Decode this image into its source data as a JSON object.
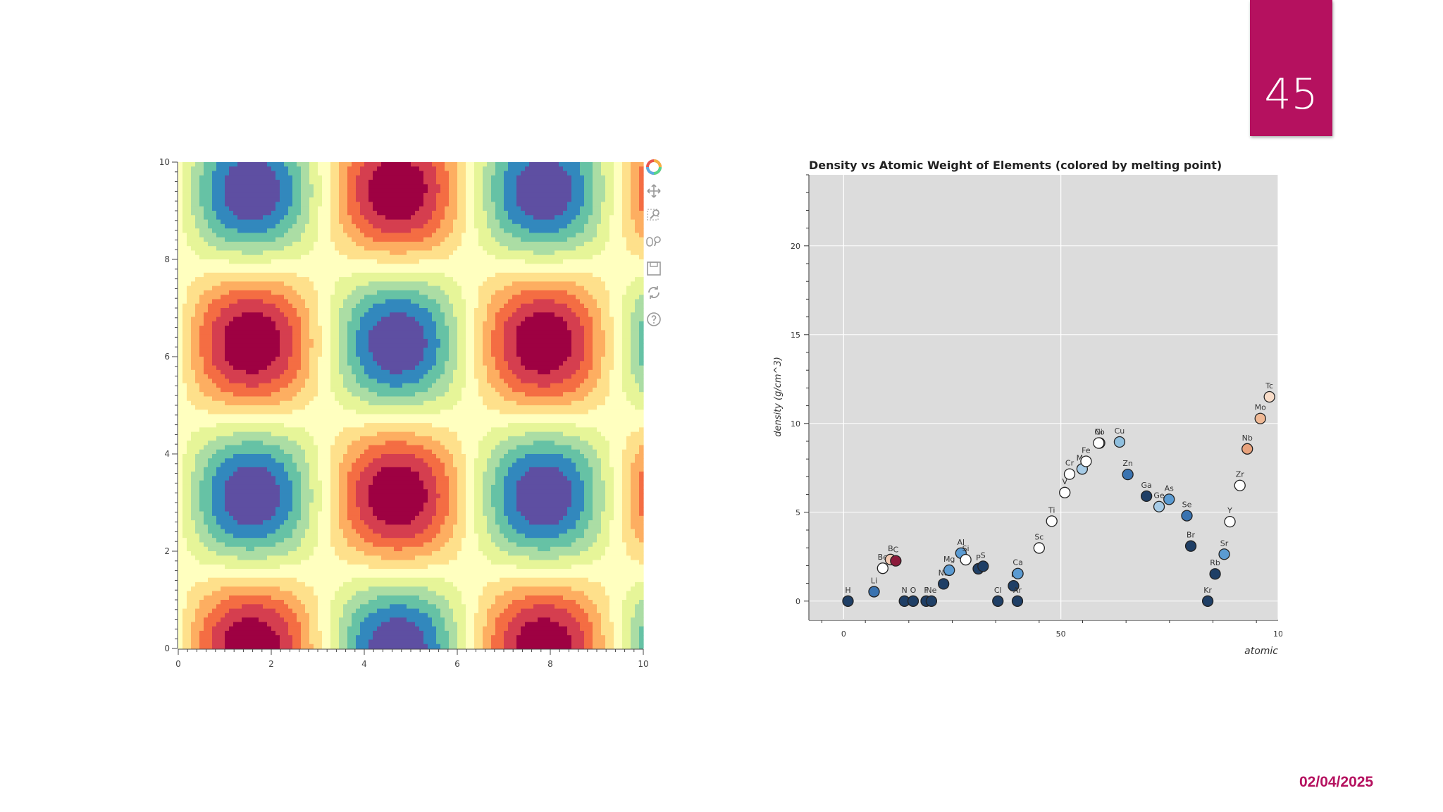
{
  "slide": {
    "number": "45",
    "date": "02/04/2025"
  },
  "toolbar": {
    "icons": [
      "bokeh-logo-icon",
      "pan-icon",
      "box-zoom-icon",
      "wheel-zoom-icon",
      "save-icon",
      "reset-icon",
      "help-icon"
    ]
  },
  "chart_data": [
    {
      "type": "heatmap",
      "function": "sin(x)*cos(y)",
      "x_range": [
        0,
        10
      ],
      "y_range": [
        0,
        10
      ],
      "x_ticks": [
        "0",
        "2",
        "4",
        "6",
        "8",
        "10"
      ],
      "y_ticks": [
        "0",
        "2",
        "4",
        "6",
        "8",
        "10"
      ],
      "levels": 11,
      "palette": [
        "#5e4fa2",
        "#3288bd",
        "#66c2a5",
        "#abdda4",
        "#e6f598",
        "#ffffbf",
        "#fee08b",
        "#fdae61",
        "#f46d43",
        "#d53e4f",
        "#9e0142"
      ],
      "grid": false,
      "legend": "none"
    },
    {
      "type": "scatter",
      "title": "Density vs Atomic Weight of Elements (colored by melting point)",
      "ylabel": "density (g/cm^3)",
      "xlabel": "atomic",
      "x_range": [
        -8,
        100
      ],
      "y_range": [
        -1,
        24
      ],
      "x_ticks": [
        "0",
        "50",
        "10"
      ],
      "y_ticks": [
        "0",
        "5",
        "10",
        "15",
        "20"
      ],
      "grid": true,
      "points": [
        {
          "label": "H",
          "x": 1,
          "y": 0,
          "color": "#1f3f66"
        },
        {
          "label": "Li",
          "x": 7,
          "y": 0.53,
          "color": "#3a73b0"
        },
        {
          "label": "Be",
          "x": 9,
          "y": 1.85,
          "color": "#ffffff"
        },
        {
          "label": "B",
          "x": 10.8,
          "y": 2.34,
          "color": "#f4cbb4"
        },
        {
          "label": "C",
          "x": 12,
          "y": 2.27,
          "color": "#8b1a3a"
        },
        {
          "label": "N",
          "x": 14,
          "y": 0,
          "color": "#1f3f66"
        },
        {
          "label": "O",
          "x": 16,
          "y": 0,
          "color": "#1f3f66"
        },
        {
          "label": "F",
          "x": 19,
          "y": 0,
          "color": "#1f3f66"
        },
        {
          "label": "Ne",
          "x": 20.2,
          "y": 0,
          "color": "#1f3f66"
        },
        {
          "label": "Na",
          "x": 23,
          "y": 0.97,
          "color": "#1f3f66"
        },
        {
          "label": "Mg",
          "x": 24.3,
          "y": 1.74,
          "color": "#5b9bd2"
        },
        {
          "label": "Al",
          "x": 27,
          "y": 2.7,
          "color": "#5b9bd2"
        },
        {
          "label": "Si",
          "x": 28.1,
          "y": 2.33,
          "color": "#ffffff"
        },
        {
          "label": "P",
          "x": 31,
          "y": 1.82,
          "color": "#1f3f66"
        },
        {
          "label": "S",
          "x": 32.1,
          "y": 1.96,
          "color": "#1f3f66"
        },
        {
          "label": "Cl",
          "x": 35.5,
          "y": 0,
          "color": "#1f3f66"
        },
        {
          "label": "K",
          "x": 39.1,
          "y": 0.86,
          "color": "#1f3f66"
        },
        {
          "label": "Ar",
          "x": 40,
          "y": 0,
          "color": "#1f3f66"
        },
        {
          "label": "Ca",
          "x": 40.1,
          "y": 1.55,
          "color": "#5b9bd2"
        },
        {
          "label": "Sc",
          "x": 45,
          "y": 2.99,
          "color": "#ffffff"
        },
        {
          "label": "Ti",
          "x": 47.9,
          "y": 4.5,
          "color": "#ffffff"
        },
        {
          "label": "V",
          "x": 50.9,
          "y": 6.11,
          "color": "#ffffff"
        },
        {
          "label": "Cr",
          "x": 52,
          "y": 7.15,
          "color": "#ffffff"
        },
        {
          "label": "Mn",
          "x": 54.9,
          "y": 7.44,
          "color": "#a6cbe6"
        },
        {
          "label": "Fe",
          "x": 55.8,
          "y": 7.87,
          "color": "#ffffff"
        },
        {
          "label": "Co",
          "x": 58.9,
          "y": 8.9,
          "color": "#ffffff"
        },
        {
          "label": "Ni",
          "x": 58.7,
          "y": 8.9,
          "color": "#ffffff"
        },
        {
          "label": "Cu",
          "x": 63.5,
          "y": 8.96,
          "color": "#8fbfde"
        },
        {
          "label": "Zn",
          "x": 65.4,
          "y": 7.13,
          "color": "#3a73b0"
        },
        {
          "label": "Ga",
          "x": 69.7,
          "y": 5.91,
          "color": "#1f3f66"
        },
        {
          "label": "Ge",
          "x": 72.6,
          "y": 5.32,
          "color": "#a6cbe6"
        },
        {
          "label": "As",
          "x": 74.9,
          "y": 5.73,
          "color": "#5b9bd2"
        },
        {
          "label": "Se",
          "x": 79,
          "y": 4.81,
          "color": "#3a73b0"
        },
        {
          "label": "Br",
          "x": 79.9,
          "y": 3.1,
          "color": "#1f3f66"
        },
        {
          "label": "Kr",
          "x": 83.8,
          "y": 0,
          "color": "#1f3f66"
        },
        {
          "label": "Rb",
          "x": 85.5,
          "y": 1.53,
          "color": "#1f3f66"
        },
        {
          "label": "Sr",
          "x": 87.6,
          "y": 2.64,
          "color": "#5b9bd2"
        },
        {
          "label": "Y",
          "x": 88.9,
          "y": 4.47,
          "color": "#ffffff"
        },
        {
          "label": "Zr",
          "x": 91.2,
          "y": 6.51,
          "color": "#ffffff"
        },
        {
          "label": "Nb",
          "x": 92.9,
          "y": 8.57,
          "color": "#e8a27c"
        },
        {
          "label": "Mo",
          "x": 95.9,
          "y": 10.28,
          "color": "#f0b995"
        },
        {
          "label": "Tc",
          "x": 98,
          "y": 11.5,
          "color": "#f8dcc8"
        }
      ]
    }
  ]
}
